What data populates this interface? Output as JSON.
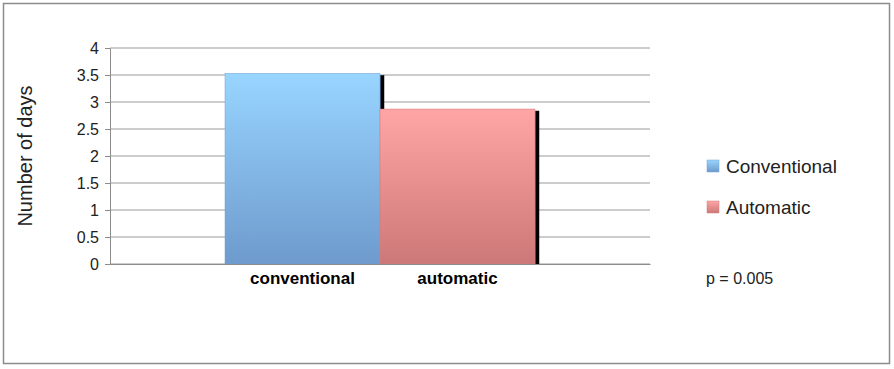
{
  "chart_data": {
    "type": "bar",
    "y_label": "Number of days",
    "categories": [
      "conventional",
      "automatic"
    ],
    "series": [
      {
        "name": "Conventional",
        "color": "#7fb2ec",
        "values": [
          3.53,
          null
        ]
      },
      {
        "name": "Automatic",
        "color": "#ec8a8a",
        "values": [
          null,
          2.87
        ]
      }
    ],
    "ylim": [
      0,
      4
    ],
    "yticks": [
      0,
      0.5,
      1,
      1.5,
      2,
      2.5,
      3,
      3.5,
      4
    ],
    "grid": true,
    "legend": "right",
    "annotations": [
      "p = 0.005"
    ]
  }
}
